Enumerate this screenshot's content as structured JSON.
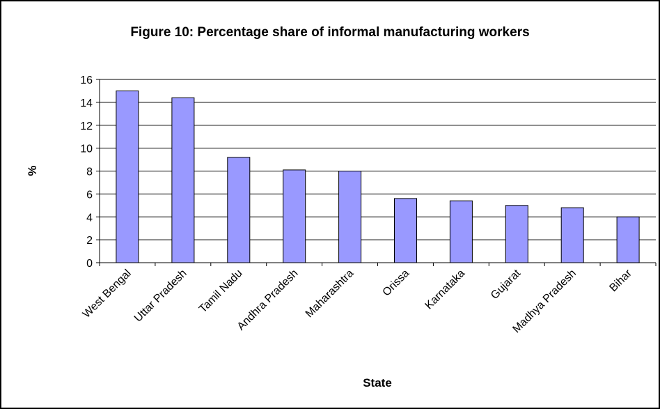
{
  "chart_data": {
    "type": "bar",
    "title": "Figure 10: Percentage share of informal manufacturing workers",
    "xlabel": "State",
    "ylabel": "%",
    "categories": [
      "West Bengal",
      "Uttar Pradesh",
      "Tamil Nadu",
      "Andhra Pradesh",
      "Maharashtra",
      "Orissa",
      "Karnataka",
      "Gujarat",
      "Madhya Pradesh",
      "Bihar"
    ],
    "values": [
      15.0,
      14.4,
      9.2,
      8.1,
      8.0,
      5.6,
      5.4,
      5.0,
      4.8,
      4.0
    ],
    "ylim": [
      0,
      16
    ],
    "yticks": [
      "0",
      "2",
      "4",
      "6",
      "8",
      "10",
      "12",
      "14",
      "16"
    ],
    "grid": true,
    "legend": "none",
    "colors": {
      "bar_fill": "#9999ff",
      "bar_stroke": "#000000",
      "grid": "#000000"
    }
  }
}
